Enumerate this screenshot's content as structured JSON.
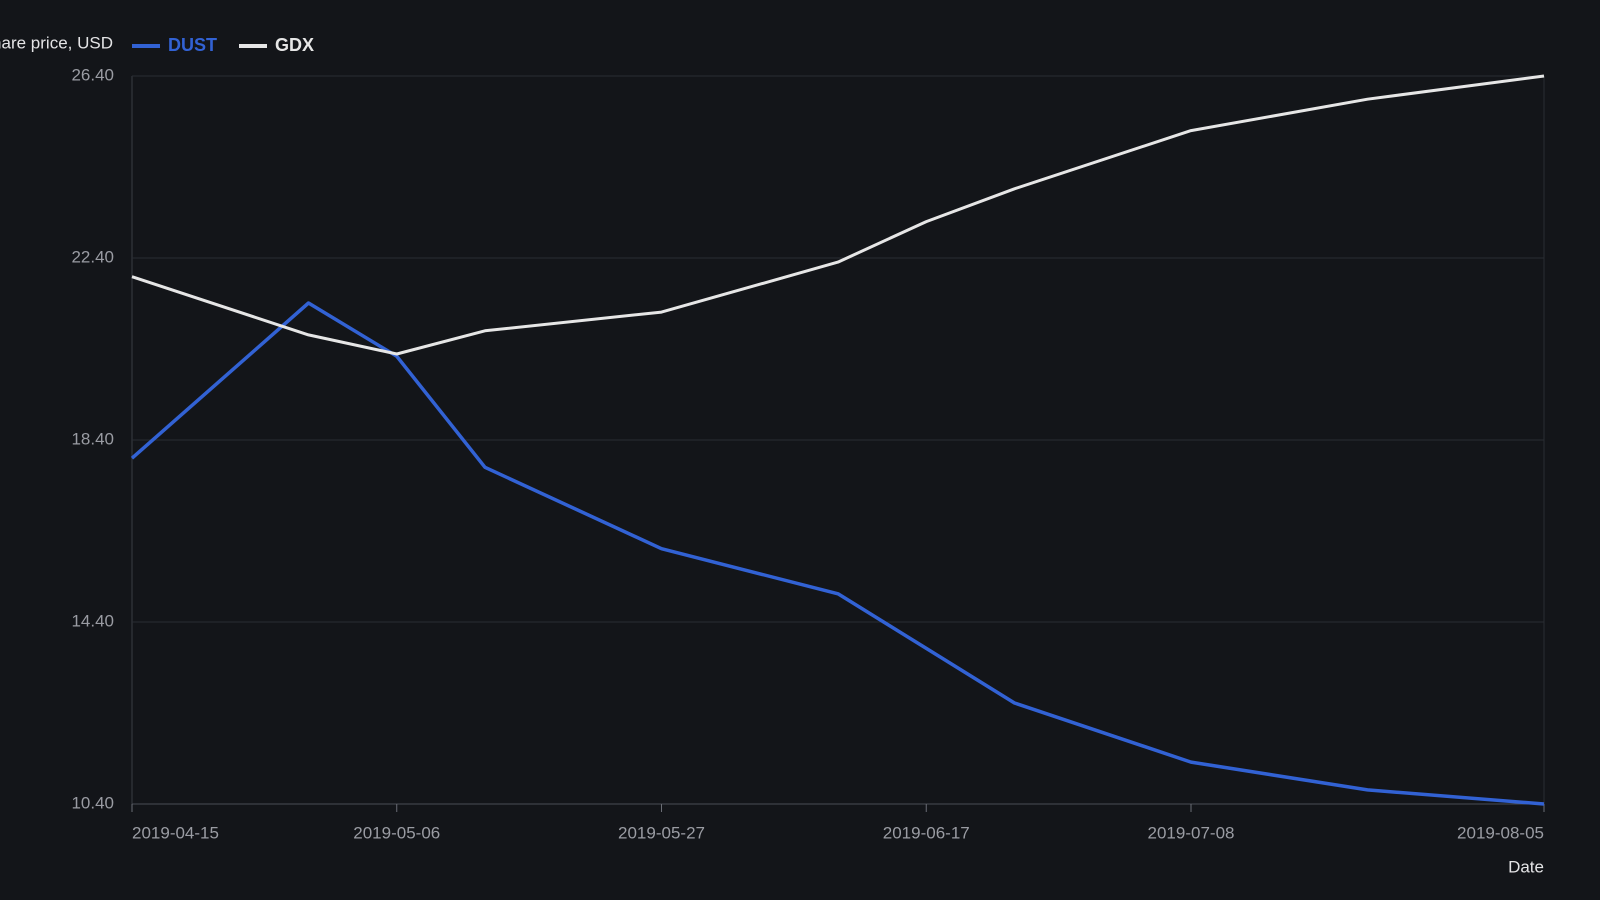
{
  "chart_data": {
    "type": "line",
    "y_label": "Share price, USD",
    "x_label": "Date",
    "x": [
      "2019-04-15",
      "2019-04-29",
      "2019-05-06",
      "2019-05-13",
      "2019-05-27",
      "2019-06-10",
      "2019-06-17",
      "2019-06-24",
      "2019-07-08",
      "2019-07-22",
      "2019-08-05"
    ],
    "series": [
      {
        "name": "DUST",
        "color": "#3262d4",
        "values": [
          18.0,
          21.41,
          20.24,
          17.8,
          16.01,
          15.02,
          13.82,
          12.62,
          11.32,
          10.71,
          10.4
        ]
      },
      {
        "name": "GDX",
        "color": "#e6e6e6",
        "values": [
          21.99,
          20.71,
          20.29,
          20.8,
          21.21,
          22.31,
          23.2,
          23.92,
          25.2,
          25.89,
          26.4
        ]
      }
    ],
    "xlim": [
      "2019-04-15",
      "2019-08-05"
    ],
    "xticks": [
      "2019-04-15",
      "2019-05-06",
      "2019-05-27",
      "2019-06-17",
      "2019-07-08",
      "2019-08-05"
    ],
    "ylim": [
      10.4,
      26.4
    ],
    "yticks": [
      {
        "value": 10.4,
        "label": "10.40"
      },
      {
        "value": 14.4,
        "label": "14.40"
      },
      {
        "value": 18.4,
        "label": "18.40"
      },
      {
        "value": 22.4,
        "label": "22.40"
      },
      {
        "value": 26.4,
        "label": "26.40"
      }
    ],
    "grid": true
  }
}
